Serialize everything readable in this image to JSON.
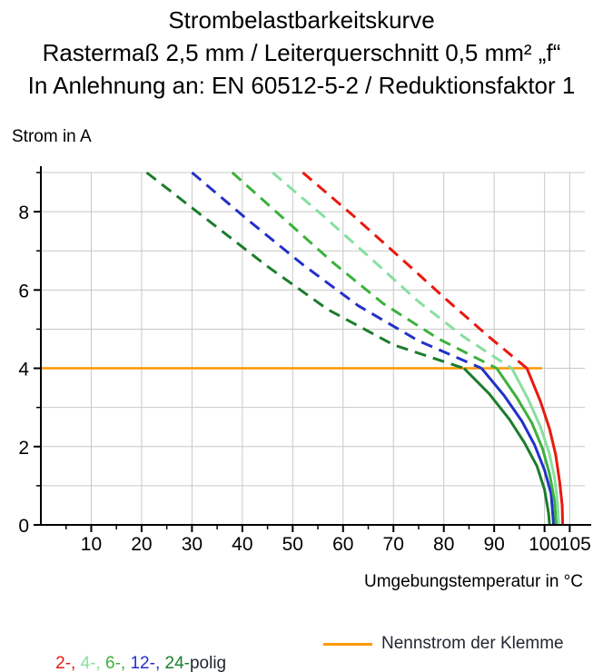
{
  "title": {
    "line1": "Strombelastbarkeitskurve",
    "line2": "Rastermaß 2,5 mm / Leiterquerschnitt 0,5 mm² „f“",
    "line3": "In Anlehnung an: EN 60512-5-2 / Reduktionsfaktor 1"
  },
  "chart_data": {
    "type": "line",
    "title": "Strombelastbarkeitskurve",
    "ylabel": "Strom in A",
    "xlabel": "Umgebungstemperatur in °C",
    "xlim": [
      0,
      108
    ],
    "ylim": [
      0,
      9
    ],
    "x_major_ticks": [
      10,
      20,
      30,
      40,
      50,
      60,
      70,
      80,
      90,
      100,
      105
    ],
    "x_minor_ticks": [
      5,
      15,
      25,
      35,
      45,
      55,
      65,
      75,
      85,
      95
    ],
    "y_major_ticks": [
      0,
      2,
      4,
      6,
      8
    ],
    "y_minor_ticks": [
      1,
      3,
      5,
      7,
      9
    ],
    "grid": {
      "color": "#c8c8c8",
      "x_lines": [
        10,
        20,
        30,
        40,
        50,
        60,
        70,
        80,
        90,
        100,
        105
      ],
      "y_lines": [
        1,
        2,
        3,
        4,
        5,
        6,
        7,
        8,
        9
      ]
    },
    "axis_color": "#000000",
    "series": [
      {
        "name": "24-polig",
        "color": "#1c7c2c",
        "dashed": [
          [
            21,
            9
          ],
          [
            33,
            7.8
          ],
          [
            45,
            6.6
          ],
          [
            57,
            5.5
          ],
          [
            70,
            4.6
          ],
          [
            84,
            4
          ]
        ],
        "solid": [
          [
            84,
            4
          ],
          [
            89,
            3.35
          ],
          [
            93,
            2.7
          ],
          [
            96,
            2.1
          ],
          [
            98.5,
            1.5
          ],
          [
            100,
            0.9
          ],
          [
            100.8,
            0.3
          ],
          [
            101,
            0
          ]
        ]
      },
      {
        "name": "12-polig",
        "color": "#2331c8",
        "dashed": [
          [
            30,
            9
          ],
          [
            41,
            7.8
          ],
          [
            52,
            6.65
          ],
          [
            63,
            5.6
          ],
          [
            75,
            4.7
          ],
          [
            87.5,
            4
          ]
        ],
        "solid": [
          [
            87.5,
            4
          ],
          [
            92,
            3.3
          ],
          [
            95.5,
            2.65
          ],
          [
            98,
            2.05
          ],
          [
            100,
            1.4
          ],
          [
            101.3,
            0.8
          ],
          [
            101.8,
            0
          ]
        ]
      },
      {
        "name": "6-polig",
        "color": "#3cb13c",
        "dashed": [
          [
            38,
            9
          ],
          [
            48,
            7.85
          ],
          [
            58,
            6.7
          ],
          [
            68,
            5.65
          ],
          [
            79,
            4.75
          ],
          [
            90.5,
            4
          ]
        ],
        "solid": [
          [
            90.5,
            4
          ],
          [
            94.5,
            3.25
          ],
          [
            97.5,
            2.6
          ],
          [
            99.6,
            1.95
          ],
          [
            101,
            1.3
          ],
          [
            102,
            0.6
          ],
          [
            102.3,
            0
          ]
        ]
      },
      {
        "name": "4-polig",
        "color": "#88dfa0",
        "dashed": [
          [
            46,
            9
          ],
          [
            56,
            7.9
          ],
          [
            66,
            6.75
          ],
          [
            75,
            5.7
          ],
          [
            84,
            4.8
          ],
          [
            93.5,
            4
          ]
        ],
        "solid": [
          [
            93.5,
            4
          ],
          [
            96.8,
            3.2
          ],
          [
            99.2,
            2.5
          ],
          [
            100.9,
            1.85
          ],
          [
            102,
            1.2
          ],
          [
            102.6,
            0.55
          ],
          [
            102.8,
            0
          ]
        ]
      },
      {
        "name": "2-polig",
        "color": "#e8190f",
        "dashed": [
          [
            52,
            9
          ],
          [
            62,
            7.9
          ],
          [
            72,
            6.75
          ],
          [
            81,
            5.7
          ],
          [
            89,
            4.8
          ],
          [
            96.5,
            4
          ]
        ],
        "solid": [
          [
            96.5,
            4
          ],
          [
            99.2,
            3.15
          ],
          [
            101,
            2.45
          ],
          [
            102.2,
            1.8
          ],
          [
            103,
            1.1
          ],
          [
            103.5,
            0.5
          ],
          [
            103.6,
            0
          ]
        ]
      }
    ],
    "reference_line": {
      "label": "Nennstrom der Klemme",
      "y": 4,
      "x_start": 0,
      "x_end": 99.5,
      "color": "#ff9800"
    }
  },
  "legend": {
    "poles": [
      {
        "label": "2-, ",
        "color": "#e8190f"
      },
      {
        "label": "4-, ",
        "color": "#88dfa0"
      },
      {
        "label": "6-, ",
        "color": "#3cb13c"
      },
      {
        "label": "12-, ",
        "color": "#2331c8"
      },
      {
        "label": "24-",
        "color": "#1c7c2c"
      }
    ],
    "poles_suffix": "polig",
    "suffix_color": "#1f2630",
    "reference": {
      "label": "Nennstrom der Klemme",
      "color": "#ff9800",
      "text_color": "#1f2630"
    }
  }
}
